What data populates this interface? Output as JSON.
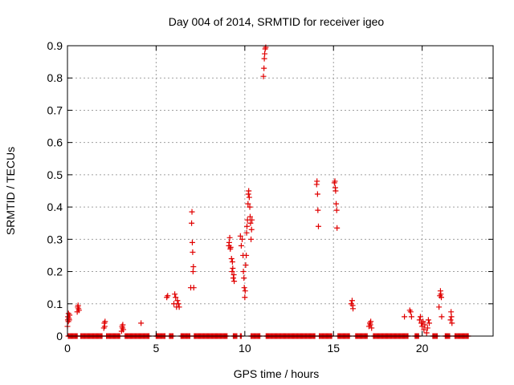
{
  "chart_data": {
    "type": "scatter",
    "title": "Day 004 of 2014, SRMTID for receiver igeo",
    "xlabel": "GPS time / hours",
    "ylabel": "SRMTID / TECUs",
    "xlim": [
      0,
      24
    ],
    "ylim": [
      0,
      0.9
    ],
    "x_ticks": [
      0,
      5,
      10,
      15,
      20
    ],
    "x_tick_labels": [
      "0",
      "5",
      "10",
      "15",
      "20"
    ],
    "y_ticks": [
      0,
      0.1,
      0.2,
      0.3,
      0.4,
      0.5,
      0.6,
      0.7,
      0.8,
      0.9
    ],
    "y_tick_labels": [
      "0",
      "0.1",
      "0.2",
      "0.3",
      "0.4",
      "0.5",
      "0.6",
      "0.7",
      "0.8",
      "0.9"
    ],
    "grid": true,
    "marker": "+",
    "marker_color": "#e00000",
    "series": [
      {
        "name": "SRMTID",
        "zero_baseline_ranges": [
          [
            0.05,
            0.55
          ],
          [
            0.75,
            1.95
          ],
          [
            2.2,
            2.95
          ],
          [
            3.25,
            4.6
          ],
          [
            5.0,
            5.5
          ],
          [
            5.75,
            5.95
          ],
          [
            6.4,
            6.9
          ],
          [
            7.15,
            9.0
          ],
          [
            9.35,
            9.55
          ],
          [
            9.75,
            9.8
          ],
          [
            10.35,
            10.85
          ],
          [
            11.2,
            13.95
          ],
          [
            14.2,
            14.9
          ],
          [
            15.25,
            15.9
          ],
          [
            16.25,
            16.9
          ],
          [
            17.25,
            19.2
          ],
          [
            19.6,
            19.8
          ],
          [
            20.6,
            20.85
          ],
          [
            21.3,
            21.55
          ],
          [
            21.85,
            22.6
          ]
        ],
        "points": [
          [
            0.0,
            0.03
          ],
          [
            0.02,
            0.05
          ],
          [
            0.03,
            0.06
          ],
          [
            0.05,
            0.045
          ],
          [
            0.06,
            0.07
          ],
          [
            0.08,
            0.055
          ],
          [
            0.1,
            0.05
          ],
          [
            0.12,
            0.065
          ],
          [
            0.55,
            0.075
          ],
          [
            0.58,
            0.09
          ],
          [
            0.6,
            0.095
          ],
          [
            0.62,
            0.085
          ],
          [
            0.65,
            0.08
          ],
          [
            2.05,
            0.025
          ],
          [
            2.08,
            0.04
          ],
          [
            2.1,
            0.03
          ],
          [
            2.12,
            0.045
          ],
          [
            3.05,
            0.015
          ],
          [
            3.08,
            0.03
          ],
          [
            3.1,
            0.025
          ],
          [
            3.12,
            0.035
          ],
          [
            3.15,
            0.02
          ],
          [
            4.15,
            0.04
          ],
          [
            5.6,
            0.12
          ],
          [
            5.65,
            0.125
          ],
          [
            6.0,
            0.1
          ],
          [
            6.05,
            0.13
          ],
          [
            6.1,
            0.12
          ],
          [
            6.15,
            0.09
          ],
          [
            6.2,
            0.11
          ],
          [
            6.25,
            0.1
          ],
          [
            6.3,
            0.09
          ],
          [
            6.95,
            0.15
          ],
          [
            7.0,
            0.35
          ],
          [
            7.02,
            0.385
          ],
          [
            7.04,
            0.29
          ],
          [
            7.06,
            0.26
          ],
          [
            7.08,
            0.2
          ],
          [
            7.1,
            0.215
          ],
          [
            7.12,
            0.15
          ],
          [
            9.1,
            0.28
          ],
          [
            9.12,
            0.29
          ],
          [
            9.15,
            0.305
          ],
          [
            9.18,
            0.27
          ],
          [
            9.2,
            0.275
          ],
          [
            9.25,
            0.24
          ],
          [
            9.28,
            0.2
          ],
          [
            9.3,
            0.23
          ],
          [
            9.32,
            0.21
          ],
          [
            9.35,
            0.18
          ],
          [
            9.38,
            0.19
          ],
          [
            9.4,
            0.17
          ],
          [
            9.75,
            0.31
          ],
          [
            9.8,
            0.28
          ],
          [
            9.85,
            0.3
          ],
          [
            9.9,
            0.25
          ],
          [
            9.92,
            0.2
          ],
          [
            9.95,
            0.18
          ],
          [
            9.97,
            0.15
          ],
          [
            10.0,
            0.12
          ],
          [
            10.02,
            0.14
          ],
          [
            10.05,
            0.22
          ],
          [
            10.08,
            0.25
          ],
          [
            10.1,
            0.32
          ],
          [
            10.12,
            0.34
          ],
          [
            10.15,
            0.36
          ],
          [
            10.18,
            0.41
          ],
          [
            10.2,
            0.44
          ],
          [
            10.22,
            0.45
          ],
          [
            10.25,
            0.43
          ],
          [
            10.28,
            0.4
          ],
          [
            10.3,
            0.37
          ],
          [
            10.32,
            0.35
          ],
          [
            10.35,
            0.3
          ],
          [
            10.38,
            0.33
          ],
          [
            10.4,
            0.36
          ],
          [
            11.05,
            0.805
          ],
          [
            11.08,
            0.83
          ],
          [
            11.1,
            0.86
          ],
          [
            11.12,
            0.875
          ],
          [
            11.15,
            0.89
          ],
          [
            11.18,
            0.895
          ],
          [
            14.05,
            0.47
          ],
          [
            14.07,
            0.48
          ],
          [
            14.1,
            0.44
          ],
          [
            14.12,
            0.39
          ],
          [
            14.15,
            0.34
          ],
          [
            15.05,
            0.475
          ],
          [
            15.08,
            0.48
          ],
          [
            15.1,
            0.46
          ],
          [
            15.12,
            0.45
          ],
          [
            15.15,
            0.41
          ],
          [
            15.18,
            0.39
          ],
          [
            15.2,
            0.335
          ],
          [
            16.0,
            0.1
          ],
          [
            16.05,
            0.11
          ],
          [
            16.08,
            0.095
          ],
          [
            16.1,
            0.085
          ],
          [
            17.0,
            0.03
          ],
          [
            17.05,
            0.04
          ],
          [
            17.08,
            0.035
          ],
          [
            17.1,
            0.045
          ],
          [
            17.15,
            0.025
          ],
          [
            19.0,
            0.06
          ],
          [
            19.3,
            0.08
          ],
          [
            19.35,
            0.075
          ],
          [
            19.4,
            0.06
          ],
          [
            19.85,
            0.05
          ],
          [
            19.9,
            0.06
          ],
          [
            19.95,
            0.04
          ],
          [
            20.0,
            0.03
          ],
          [
            20.05,
            0.045
          ],
          [
            20.1,
            0.02
          ],
          [
            20.15,
            0.035
          ],
          [
            20.25,
            0.01
          ],
          [
            20.3,
            0.025
          ],
          [
            20.35,
            0.05
          ],
          [
            20.4,
            0.04
          ],
          [
            20.95,
            0.09
          ],
          [
            21.0,
            0.125
          ],
          [
            21.03,
            0.14
          ],
          [
            21.05,
            0.13
          ],
          [
            21.08,
            0.12
          ],
          [
            21.1,
            0.06
          ],
          [
            21.6,
            0.05
          ],
          [
            21.63,
            0.075
          ],
          [
            21.65,
            0.06
          ],
          [
            21.68,
            0.04
          ]
        ]
      }
    ]
  }
}
